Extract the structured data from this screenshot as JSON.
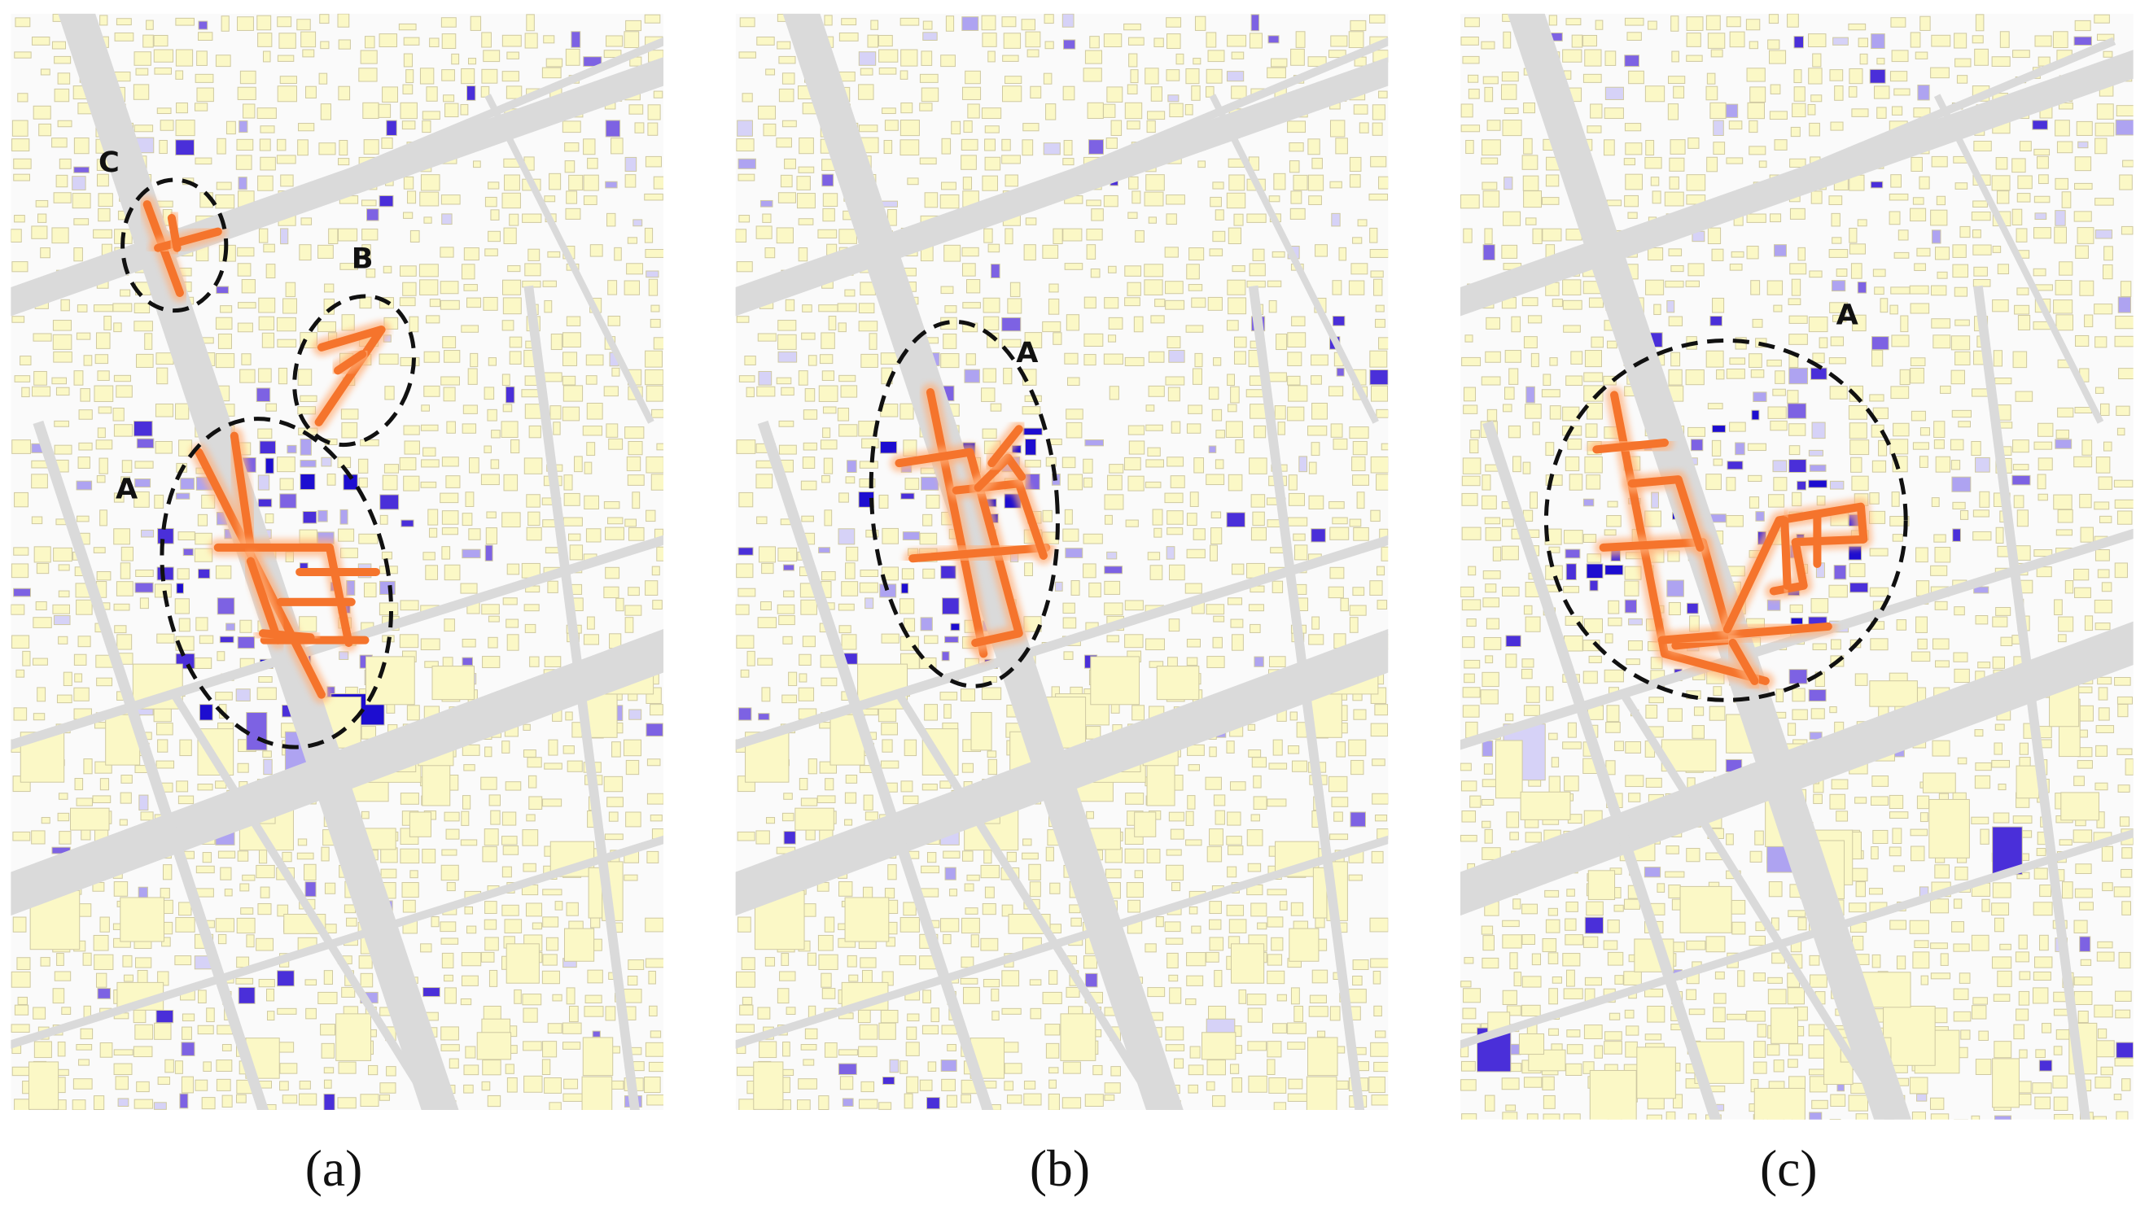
{
  "panels": [
    {
      "label": "(a)",
      "annotations": [
        "C",
        "B",
        "A"
      ]
    },
    {
      "label": "(b)",
      "annotations": [
        "A"
      ]
    },
    {
      "label": "(c)",
      "annotations": [
        "A"
      ]
    }
  ]
}
